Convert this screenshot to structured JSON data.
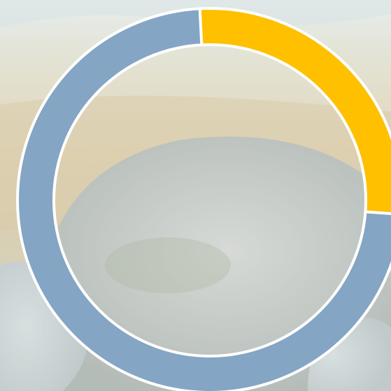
{
  "chart_data": {
    "type": "pie",
    "variant": "donut",
    "title": "",
    "start_angle_deg": -3,
    "series": [
      {
        "name": "",
        "value": 27,
        "color": "#ffc000"
      },
      {
        "name": "",
        "value": 73,
        "color": "#84a5c3"
      }
    ],
    "separator_color": "#ffffff",
    "labels_shown": false,
    "legend": "none"
  },
  "background": {
    "description_icon": "photo-background-icon",
    "tint": "#e9eef2"
  }
}
